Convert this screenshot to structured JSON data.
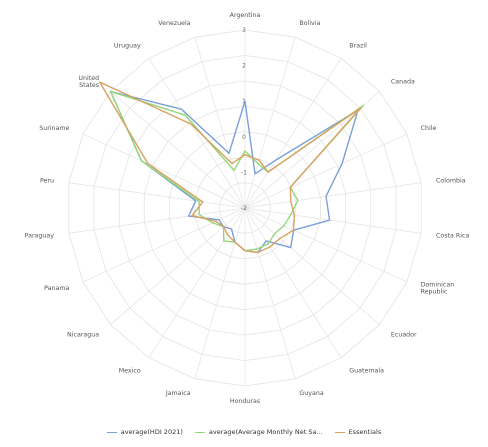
{
  "chart_data": {
    "type": "radar",
    "categories": [
      "Argentina",
      "Bolivia",
      "Brazil",
      "Canada",
      "Chile",
      "Colombia",
      "Costa Rica",
      "Dominican Republic",
      "Ecuador",
      "Guatemala",
      "Guyana",
      "Honduras",
      "Jamaica",
      "Mexico",
      "Nicaragua",
      "Panama",
      "Paraguay",
      "Peru",
      "Suriname",
      "United States",
      "Uruguay",
      "Venezuela"
    ],
    "category_display": [
      "Argentina",
      "Bolivia",
      "Brazil",
      "Canada",
      "Chile",
      "Colombia",
      "Costa Rica",
      "Dominican\nRepublic",
      "Ecuador",
      "Guatemala",
      "Guyana",
      "Honduras",
      "Jamaica",
      "Mexico",
      "Nicaragua",
      "Panama",
      "Paraguay",
      "Peru",
      "Suriname",
      "United\nStates",
      "Uruguay",
      "Venezuela"
    ],
    "rlim": [
      -2,
      3
    ],
    "ticks": [
      "-2",
      "-1",
      "0",
      "1",
      "2",
      "3"
    ],
    "grid": true,
    "legend_position": "bottom",
    "series": [
      {
        "name": "average(HDI 2021)",
        "color": "#7b9fd9",
        "values": [
          1.0,
          -1.0,
          -0.4,
          2.2,
          1.0,
          0.3,
          0.4,
          -0.5,
          -0.3,
          -0.9,
          -0.7,
          -0.8,
          -1.0,
          -1.3,
          -1.2,
          -1.2,
          -0.4,
          -0.6,
          1.2,
          3.0,
          1.3,
          -0.4
        ]
      },
      {
        "name": "average(Average Monthly Net Sa...",
        "color": "#93d87a",
        "values": [
          -0.4,
          -0.7,
          -0.8,
          2.4,
          -0.6,
          -0.5,
          -0.7,
          -0.8,
          -0.9,
          -0.8,
          -0.8,
          -0.8,
          -1.0,
          -0.9,
          -1.2,
          -1.0,
          -0.7,
          -0.7,
          1.2,
          3.0,
          1.1,
          -0.9
        ]
      },
      {
        "name": "Essentials",
        "color": "#d9a15f",
        "values": [
          -0.5,
          -0.6,
          -0.8,
          2.3,
          -0.6,
          -0.7,
          -0.6,
          -0.5,
          -0.7,
          -0.7,
          -0.7,
          -0.8,
          -1.0,
          -1.1,
          -1.2,
          -1.1,
          -0.5,
          -0.8,
          1.0,
          3.4,
          0.8,
          -0.7
        ]
      }
    ]
  }
}
